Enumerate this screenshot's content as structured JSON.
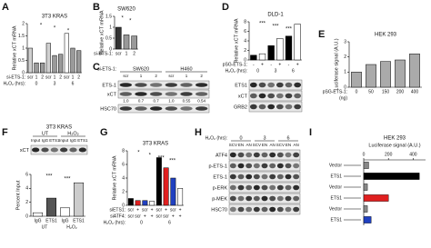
{
  "chart_data": [
    {
      "panel": "A",
      "type": "bar",
      "title": "3T3 KRAS",
      "y_label": "Relative xCT mRNA",
      "category_label": "si-ETS-1:",
      "categories": [
        "scr",
        "1",
        "2",
        "scr",
        "1",
        "2",
        "scr",
        "1",
        "2"
      ],
      "x_rows": [
        {
          "label": "H₂O₂ (hrs):",
          "labels": [
            "0",
            "3",
            "6"
          ]
        }
      ],
      "values": [
        1.0,
        0.4,
        0.4,
        1.2,
        0.7,
        0.75,
        1.6,
        1.0,
        0.9
      ],
      "colors": [
        "#d0d0d0",
        "#9a9a9a",
        "#9a9a9a",
        "#d0d0d0",
        "#9a9a9a",
        "#9a9a9a",
        "#ffffff",
        "#9a9a9a",
        "#9a9a9a"
      ],
      "ylim": [
        0,
        2
      ],
      "yticks": [
        0,
        0.5,
        1,
        1.5,
        2
      ],
      "annotations": [
        "*",
        "*",
        "*"
      ]
    },
    {
      "panel": "B",
      "type": "bar",
      "title": "SW620",
      "y_label": "Relative xCT mRNA",
      "category_label": "si-ETS-1:",
      "categories": [
        "scr",
        "1",
        "2"
      ],
      "x_rows": [],
      "values": [
        1.0,
        0.65,
        0.6
      ],
      "colors": [
        "#333333",
        "#999999",
        "#999999"
      ],
      "ylim": [
        0,
        1.5
      ],
      "yticks": [
        0,
        0.5,
        1,
        1.5
      ],
      "annotations": [
        "*",
        "*"
      ]
    },
    {
      "panel": "D",
      "type": "bar",
      "title": "DLD-1",
      "y_label": "Relative xCT mRNA",
      "category_label": "pSG-ETS-1:",
      "categories": [
        "-",
        "+",
        "-",
        "+",
        "-",
        "+"
      ],
      "x_rows": [
        {
          "label": "H₂O₂ (hrs):",
          "labels": [
            "0",
            "3",
            "6"
          ]
        }
      ],
      "values": [
        1.0,
        1.3,
        3.0,
        4.5,
        5.0,
        7.5
      ],
      "colors": [
        "#000000",
        "#ffffff",
        "#000000",
        "#ffffff",
        "#000000",
        "#ffffff"
      ],
      "ylim": [
        0,
        8
      ],
      "yticks": [
        0,
        2,
        4,
        6,
        8
      ],
      "annotations": [
        "***",
        "***",
        "***"
      ]
    },
    {
      "panel": "E",
      "type": "bar",
      "title": "HEK 293",
      "y_label": "Luciferase signal (A.U.)",
      "category_label": "pSG-ETS-1:",
      "categories": [
        "0",
        "50",
        "150",
        "200",
        "400"
      ],
      "x_rows": [
        {
          "label": "(ng)",
          "labels": []
        }
      ],
      "values": [
        1.0,
        1.5,
        1.7,
        1.8,
        2.2
      ],
      "colors": [
        "#aaaaaa",
        "#aaaaaa",
        "#aaaaaa",
        "#aaaaaa",
        "#aaaaaa"
      ],
      "ylim": [
        0,
        3
      ],
      "yticks": [
        0,
        1,
        2,
        3
      ],
      "annotations": []
    },
    {
      "type": "bar",
      "y_label": "Percent Input",
      "categories": [
        "IgG",
        "ETS1",
        "IgG",
        "ETS1"
      ],
      "x_rows": [
        {
          "label": "",
          "labels": [
            "UT",
            "H₂O₂"
          ]
        }
      ],
      "values": [
        0.5,
        2.6,
        1.2,
        4.8
      ],
      "colors": [
        "#ffffff",
        "#555555",
        "#ffffff",
        "#cccccc"
      ],
      "ylim": [
        0,
        6
      ],
      "yticks": [
        0,
        2,
        4,
        6
      ],
      "annotations": [
        "***",
        "***"
      ]
    },
    {
      "panel": "G",
      "type": "bar",
      "title": "3T3 KRAS",
      "y_label": "Relative xCT mRNA",
      "category_label": "siETS1:",
      "categories": [
        "scr",
        "+",
        "scr",
        "+",
        "scr",
        "+",
        "scr",
        "+"
      ],
      "x_rows": [
        {
          "label": "siATF4:",
          "labels": [
            "scr",
            "scr",
            "+",
            "+",
            "scr",
            "scr",
            "+",
            "+"
          ]
        },
        {
          "label": "H₂O₂ (hrs):",
          "labels": [
            "0",
            "6"
          ]
        }
      ],
      "values": [
        1.0,
        0.7,
        0.7,
        0.6,
        7.0,
        5.5,
        4.0,
        2.5
      ],
      "colors": [
        "#000000",
        "#e02020",
        "#2040c0",
        "#ffffff",
        "#000000",
        "#e02020",
        "#2040c0",
        "#ffffff"
      ],
      "ylim": [
        0,
        8
      ],
      "yticks": [
        0,
        2,
        4,
        6,
        8
      ],
      "annotations": [
        "*",
        "*",
        "***",
        "***"
      ]
    },
    {
      "panel": "I",
      "type": "hbar",
      "title": "HEK 293",
      "x_label": "Luciferase signal (A.U.)",
      "categories": [
        "Vector",
        "ETS1",
        "Vector",
        "ETS1",
        "Vector",
        "ETS1"
      ],
      "values": [
        40,
        450,
        30,
        200,
        30,
        60
      ],
      "colors": [
        "#888888",
        "#000000",
        "#888888",
        "#e02020",
        "#888888",
        "#2040c0"
      ],
      "xlim": [
        0,
        500
      ],
      "xticks": [
        0,
        200,
        400
      ]
    }
  ],
  "blots": [
    {
      "panel": "C",
      "columns": [
        "SW620",
        "H460"
      ],
      "lane_label": "si-ETS-1:",
      "lanes": [
        "scr",
        "1",
        "2",
        "scr",
        "1",
        "2"
      ],
      "rows": [
        "ETS-1",
        "xCT",
        "HSC70"
      ],
      "quant": [
        "1.0",
        "0.7",
        "0.7",
        "1.0",
        "0.55",
        "0.54"
      ]
    },
    {
      "columns": [],
      "lanes": [],
      "rows": [
        "ETS1",
        "xCT",
        "GRB2"
      ],
      "quant": []
    },
    {
      "panel": "F",
      "title": "3T3 KRAS",
      "columns": [
        "UT",
        "H₂O₂"
      ],
      "lanes": [
        "Input",
        "IgG",
        "ETS1",
        "Input",
        "IgG",
        "ETS1"
      ],
      "rows": [
        "xCT"
      ],
      "quant": []
    },
    {
      "panel": "H",
      "lane_label": "H₂O₂ (hrs):",
      "columns": [
        "0",
        "3",
        "6"
      ],
      "lanes": [
        "SCV",
        "EN",
        "AN",
        "SCV",
        "EN",
        "AN",
        "SCV",
        "EN",
        "AN"
      ],
      "rows": [
        "ATF4",
        "p-ETS-1",
        "ETS-1",
        "p-ERK",
        "p-MEK",
        "HSC70"
      ],
      "quant": []
    }
  ]
}
